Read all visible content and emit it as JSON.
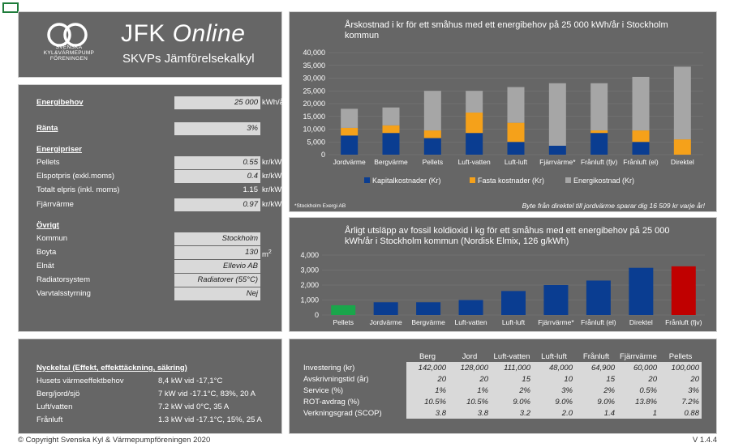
{
  "logo": {
    "org_lines": [
      "SVENSKA",
      "KYL&VÄRMEPUMP",
      "FÖRENINGEN"
    ],
    "title_a": "JFK ",
    "title_b": "Online",
    "subtitle": "SKVPs Jämförelsekalkyl"
  },
  "inputs": {
    "energibehov": {
      "label": "Energibehov",
      "value": "25 000",
      "unit": "kWh/år"
    },
    "ranta": {
      "label": "Ränta",
      "value": "3%"
    },
    "energipriser_header": "Energipriser",
    "pellets": {
      "label": "Pellets",
      "value": "0.55",
      "unit": "kr/kWh"
    },
    "elspotpris": {
      "label": "Elspotpris (exkl.moms)",
      "value": "0.4",
      "unit": "kr/kWh"
    },
    "totalt_elpris": {
      "label": "Totalt elpris (inkl. moms)",
      "value": "1.15",
      "unit": "kr/kWh"
    },
    "fjarrvarme": {
      "label": "Fjärrvärme",
      "value": "0.97",
      "unit": "kr/kWh"
    },
    "ovrigt_header": "Övrigt",
    "kommun": {
      "label": "Kommun",
      "value": "Stockholm"
    },
    "boyta": {
      "label": "Boyta",
      "value": "130",
      "unit": "m",
      "unit_sup": "2"
    },
    "elnat": {
      "label": "Elnät",
      "value": "Ellevio AB"
    },
    "radiatorsystem": {
      "label": "Radiatorsystem",
      "value": "Radiatorer (55°C)"
    },
    "varvtalsstyrning": {
      "label": "Varvtalsstyrning",
      "value": "Nej"
    }
  },
  "chart1": {
    "title": "Årskostnad i kr för ett småhus med ett energibehov på 25 000 kWh/år i Stockholm kommun",
    "footnote": "*Stockholm Exergi AB",
    "savings_note": "Byte från direktel till jordvärme sparar dig 16 509 kr varje år!",
    "colors": {
      "kapital": "#0a3d91",
      "fasta": "#f5a11a",
      "energi": "#a6a6a6"
    }
  },
  "chart2": {
    "title": "Årligt utsläpp av fossil koldioxid i kg för ett småhus med ett energibehov på 25 000 kWh/år i Stockholm kommun (Nordisk Elmix, 126 g/kWh)",
    "colors": {
      "default": "#0a3d91",
      "lowest": "#1aa64b",
      "highest": "#c00000"
    }
  },
  "chart_data": [
    {
      "type": "bar",
      "stacked": true,
      "title": "Årskostnad i kr för ett småhus med ett energibehov på 25 000 kWh/år i Stockholm kommun",
      "categories": [
        "Jordvärme",
        "Bergvärme",
        "Pellets",
        "Luft-vatten",
        "Luft-luft",
        "Fjärrvärme*",
        "Frånluft (fjv)",
        "Frånluft (el)",
        "Direktel"
      ],
      "series": [
        {
          "name": "Kapitalkostnader (Kr)",
          "values": [
            7500,
            8500,
            6500,
            8500,
            5000,
            3500,
            8500,
            5000,
            0
          ]
        },
        {
          "name": "Fasta kostnader (Kr)",
          "values": [
            3000,
            3000,
            3000,
            8000,
            7500,
            0,
            1000,
            4500,
            6000
          ]
        },
        {
          "name": "Energikostnad (Kr)",
          "values": [
            7500,
            7000,
            15500,
            8500,
            14000,
            24500,
            18500,
            21000,
            28500
          ]
        }
      ],
      "yticks": [
        "0",
        "5,000",
        "10,000",
        "15,000",
        "20,000",
        "25,000",
        "30,000",
        "35,000",
        "40,000"
      ],
      "ylim": [
        0,
        40000
      ],
      "legend": "bottom"
    },
    {
      "type": "bar",
      "title": "Årligt utsläpp av fossil koldioxid i kg för ett småhus med ett energibehov på 25 000 kWh/år i Stockholm kommun (Nordisk Elmix, 126 g/kWh)",
      "categories": [
        "Pellets",
        "Jordvärme",
        "Bergvärme",
        "Luft-vatten",
        "Luft-luft",
        "Fjärrvärme*",
        "Frånluft (el)",
        "Direktel",
        "Frånluft (fjv)"
      ],
      "values": [
        650,
        850,
        850,
        1000,
        1600,
        2000,
        2300,
        3150,
        3250
      ],
      "yticks": [
        "0",
        "1,000",
        "2,000",
        "3,000",
        "4,000"
      ],
      "ylim": [
        0,
        4000
      ]
    }
  ],
  "keys": {
    "header": "Nyckeltal (Effekt, effekttäckning, säkring)",
    "rows": [
      {
        "label": "Husets värmeeffektbehov",
        "value": "8,4 kW vid -17,1°C"
      },
      {
        "label": "Berg/jord/sjö",
        "value": "7 kW vid -17.1°C, 83%, 20 A"
      },
      {
        "label": "Luft/vatten",
        "value": "7.2 kW vid 0°C, 35 A"
      },
      {
        "label": "Frånluft",
        "value": "1.3 kW vid -17.1°C, 15%, 25 A"
      }
    ]
  },
  "table": {
    "columns": [
      "Berg",
      "Jord",
      "Luft-vatten",
      "Luft-luft",
      "Frånluft",
      "Fjärrvärme",
      "Pellets"
    ],
    "rows": [
      {
        "label": "Investering (kr)",
        "values": [
          "142,000",
          "128,000",
          "111,000",
          "48,000",
          "64,900",
          "60,000",
          "100,000"
        ]
      },
      {
        "label": "Avskrivningstid (år)",
        "values": [
          "20",
          "20",
          "15",
          "10",
          "15",
          "20",
          "20"
        ]
      },
      {
        "label": "Service (%)",
        "values": [
          "1%",
          "1%",
          "2%",
          "3%",
          "2%",
          "0.5%",
          "3%"
        ]
      },
      {
        "label": "ROT-avdrag (%)",
        "values": [
          "10.5%",
          "10.5%",
          "9.0%",
          "9.0%",
          "9.0%",
          "13.8%",
          "7.2%"
        ]
      },
      {
        "label": "Verkningsgrad (SCOP)",
        "values": [
          "3.8",
          "3.8",
          "3.2",
          "2.0",
          "1.4",
          "1",
          "0.88"
        ]
      }
    ]
  },
  "footer": {
    "copyright": "© Copyright Svenska Kyl & Värmepumpföreningen 2020",
    "version": "V 1.4.4"
  }
}
